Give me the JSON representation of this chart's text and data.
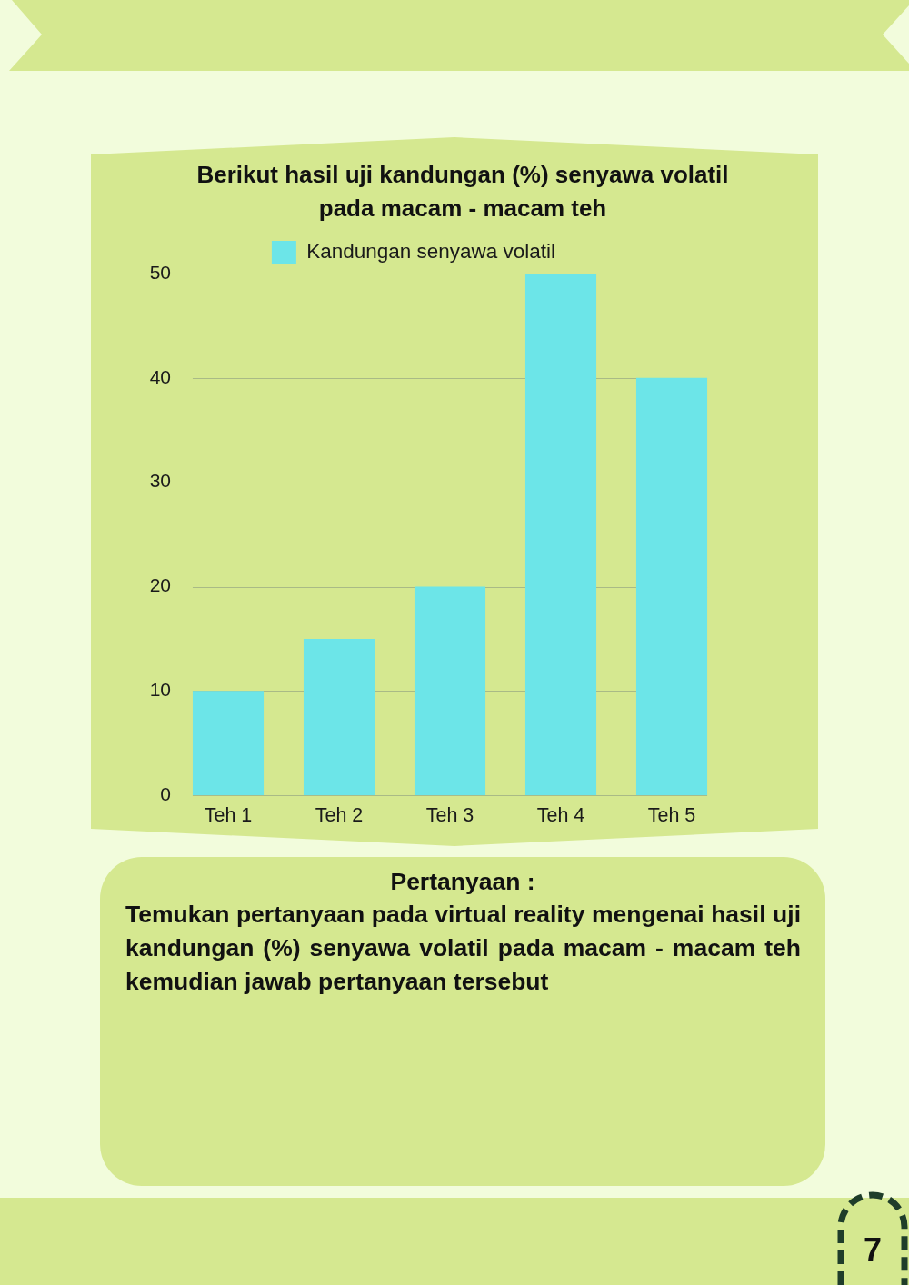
{
  "chart_data": {
    "type": "bar",
    "title": "Berikut hasil uji kandungan (%) senyawa volatil pada macam - macam teh",
    "categories": [
      "Teh 1",
      "Teh 2",
      "Teh 3",
      "Teh 4",
      "Teh 5"
    ],
    "series": [
      {
        "name": "Kandungan senyawa volatil",
        "color": "#6ce5e8",
        "values": [
          10,
          15,
          20,
          50,
          40
        ]
      }
    ],
    "ylim": [
      0,
      50
    ],
    "yticks": [
      0,
      10,
      20,
      30,
      40,
      50
    ],
    "grid": "y",
    "legend": "top",
    "annotations": [
      "Pertanyaan :",
      "Temukan pertanyaan pada virtual reality mengenai hasil uji kandungan (%) senyawa volatil pada macam - macam teh kemudian jawab pertanyaan tersebut",
      "7"
    ]
  }
}
